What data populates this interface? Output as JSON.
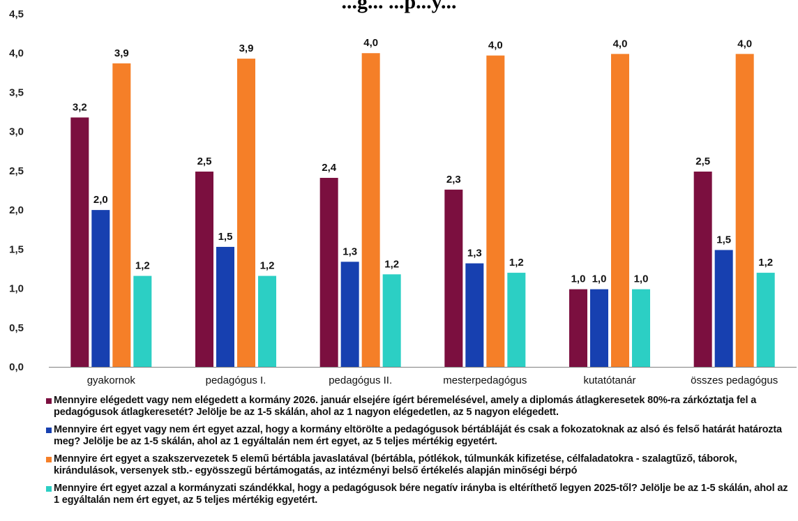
{
  "title": "...g... ...p...y...",
  "chart_data": {
    "type": "bar",
    "ylim": [
      0,
      4.5
    ],
    "yticks": [
      "0,0",
      "0,5",
      "1,0",
      "1,5",
      "2,0",
      "2,5",
      "3,0",
      "3,5",
      "4,0",
      "4,5"
    ],
    "categories": [
      "gyakornok",
      "pedagógus I.",
      "pedagógus II.",
      "mesterpedagógus",
      "kutatótanár",
      "összes pedagógus"
    ],
    "grid": false,
    "legend_position": "bottom",
    "series": [
      {
        "name": "Mennyire elégedett vagy nem elégedett a kormány 2026. január elsejére ígért béremelésével, amely a diplomás átlagkeresetek 80%-ra zárkóztatja fel a pedagógusok átlagkeresetét? Jelölje be az 1-5 skálán, ahol az 1 nagyon elégedetlen, az 5 nagyon elégedett.",
        "color": "#7b0f3f",
        "values": [
          3.18,
          2.49,
          2.41,
          2.26,
          0.99,
          2.49
        ],
        "labels": [
          "3,2",
          "2,5",
          "2,4",
          "2,3",
          "1,0",
          "2,5"
        ]
      },
      {
        "name": "Mennyire ért egyet vagy nem ért egyet azzal, hogy a kormány eltörölte a pedagógusok bértábláját és csak a fokozatoknak az alsó és felső határát határozta meg? Jelölje be az 1-5 skálán, ahol az 1 egyáltalán nem ért egyet, az 5 teljes mértékig egyetért.",
        "color": "#1740b0",
        "values": [
          2.0,
          1.53,
          1.34,
          1.32,
          0.99,
          1.49
        ],
        "labels": [
          "2,0",
          "1,5",
          "1,3",
          "1,3",
          "1,0",
          "1,5"
        ]
      },
      {
        "name": "Mennyire ért egyet a szakszervezetek 5 elemű bértábla javaslatával (bértábla, pótlékok, túlmunkák kifizetése, célfaladatokra - szalagtűző, táborok, kirándulások, versenyek stb.- egyösszegű bértámogatás, az intézményi belső értékelés alapján minőségi bérpó",
        "color": "#f57f28",
        "values": [
          3.87,
          3.93,
          4.0,
          3.97,
          3.99,
          3.99
        ],
        "labels": [
          "3,9",
          "3,9",
          "4,0",
          "4,0",
          "4,0",
          "4,0"
        ]
      },
      {
        "name": "Mennyire ért egyet azzal a kormányzati szándékkal, hogy a pedagógusok bére negatív irányba is eltéríthető legyen 2025-től? Jelölje be az 1-5 skálán, ahol az 1 egyáltalán nem ért egyet, az 5 teljes mértékig egyetért.",
        "color": "#2ccfc4",
        "values": [
          1.16,
          1.16,
          1.18,
          1.2,
          0.99,
          1.2
        ],
        "labels": [
          "1,2",
          "1,2",
          "1,2",
          "1,2",
          "1,0",
          "1,2"
        ]
      }
    ]
  }
}
